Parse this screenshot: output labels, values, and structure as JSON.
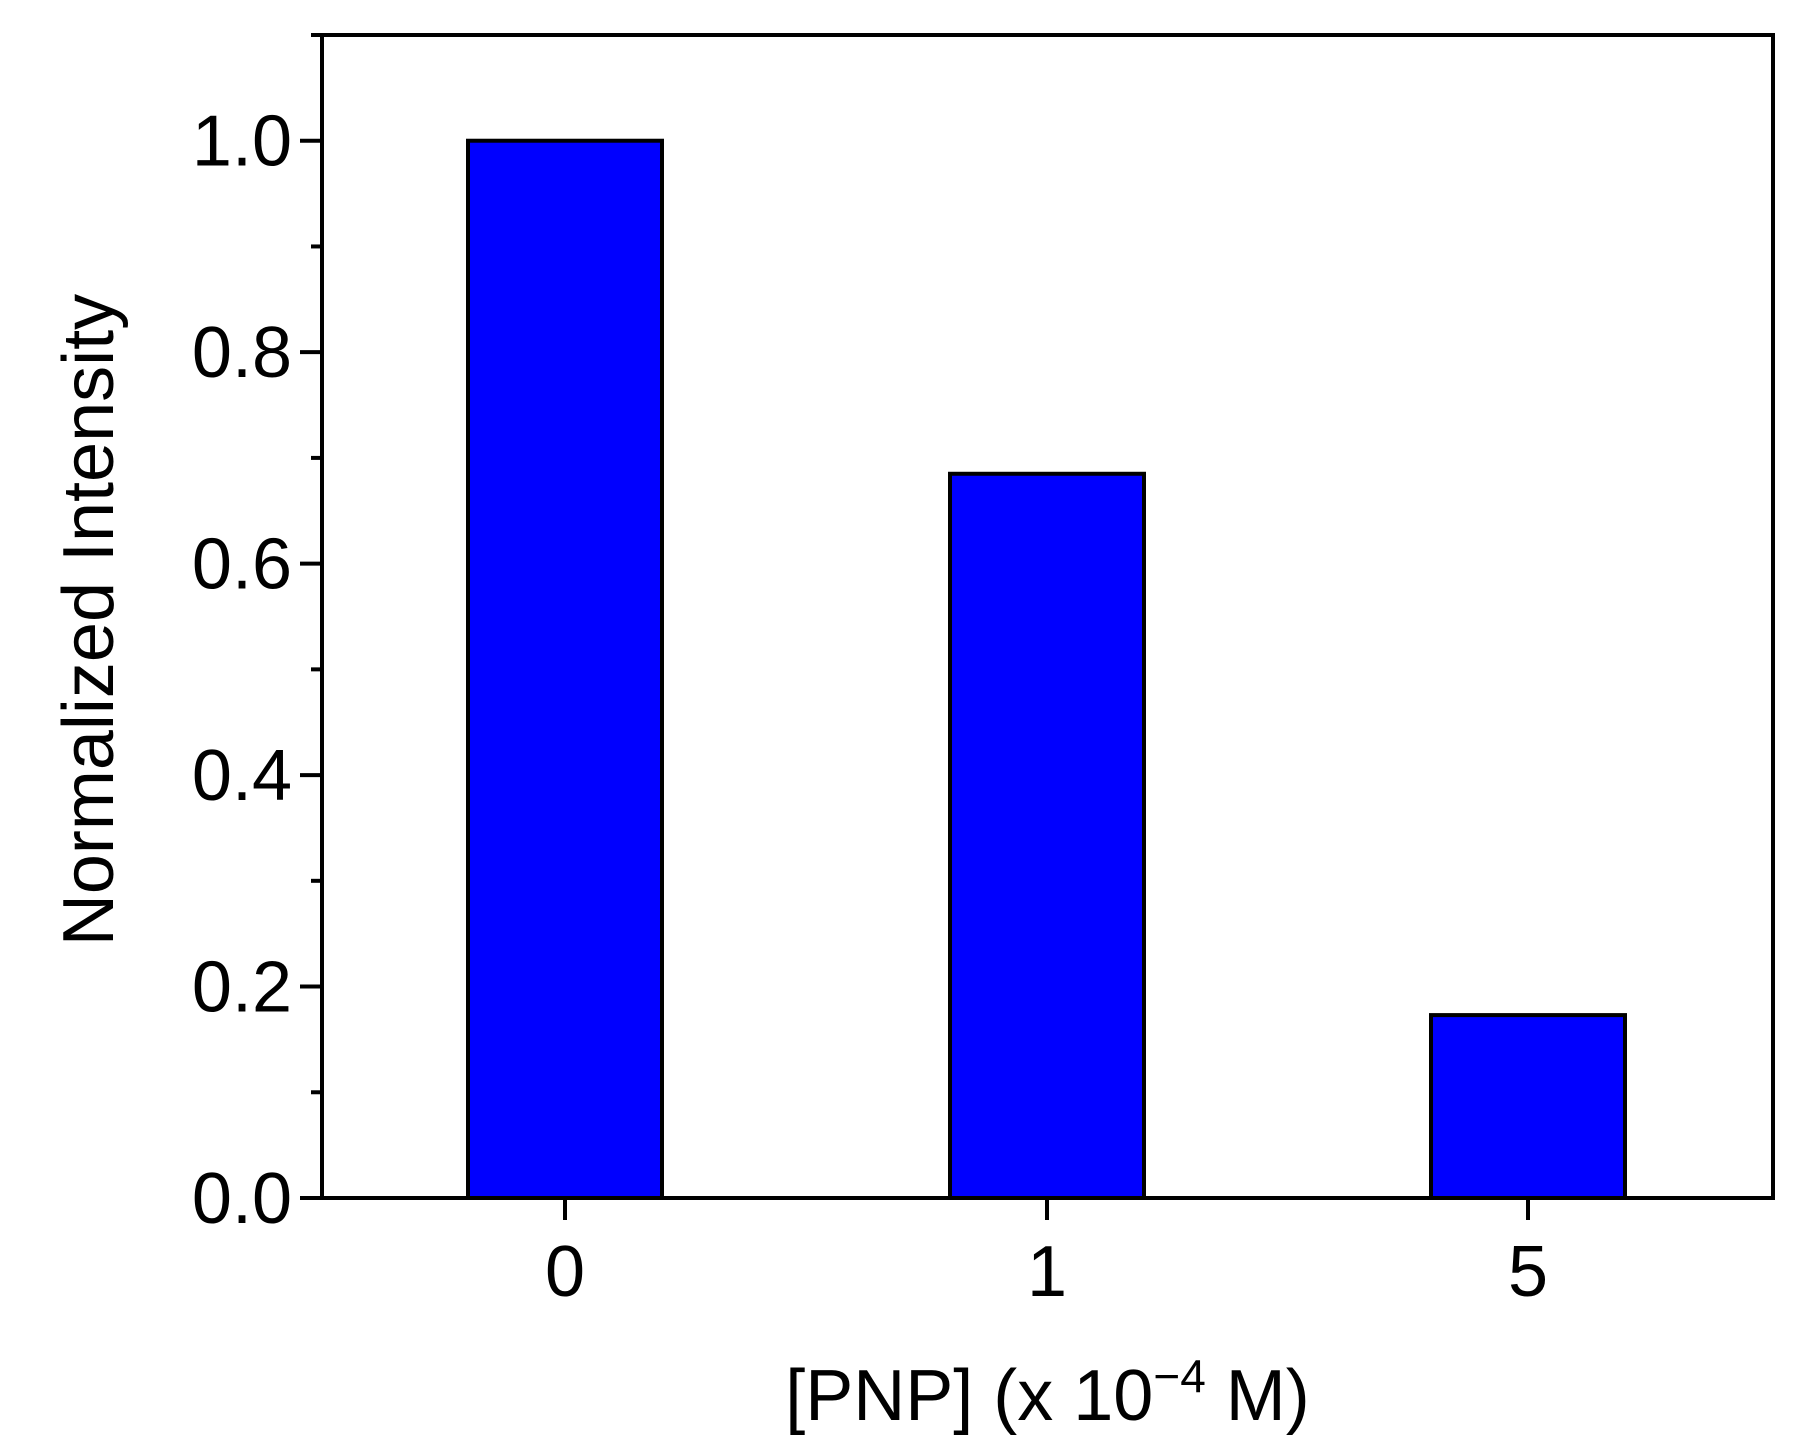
{
  "chart_data": {
    "type": "bar",
    "categories": [
      "0",
      "1",
      "5"
    ],
    "values": [
      1.0,
      0.685,
      0.173
    ],
    "ylabel": "Normalized Intensity",
    "xlabel": {
      "prefix": "[PNP] (x 10",
      "superscript": "−4",
      "suffix": " M)"
    },
    "ylim": [
      0,
      1.1
    ],
    "y_ticks": [
      "0.0",
      "0.2",
      "0.4",
      "0.6",
      "0.8",
      "1.0"
    ],
    "y_tick_values": [
      0,
      0.2,
      0.4,
      0.6,
      0.8,
      1.0
    ],
    "y_minor_tick_values": [
      0.1,
      0.3,
      0.5,
      0.7,
      0.9,
      1.1
    ],
    "bar_color": "#0000ff",
    "edge_color": "#000000",
    "grid": false,
    "legend": "none"
  }
}
